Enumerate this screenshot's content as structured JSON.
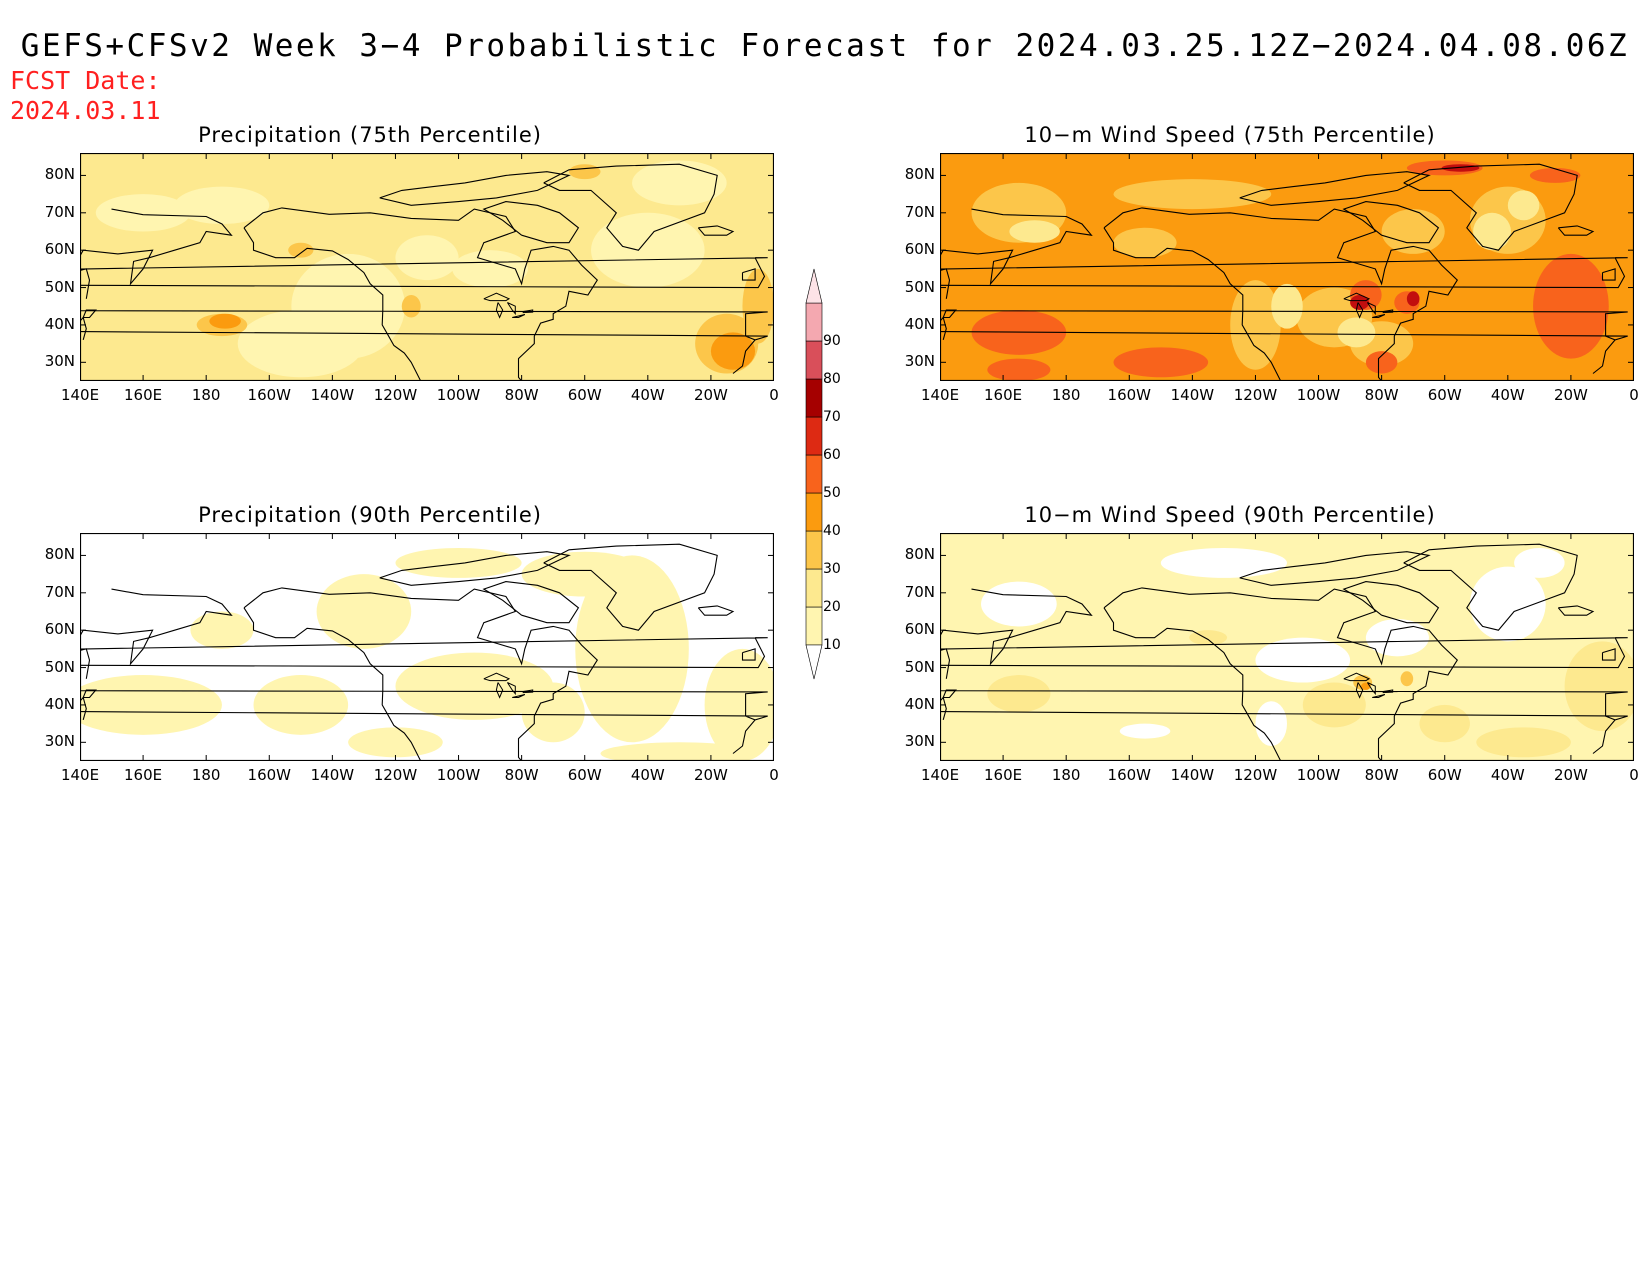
{
  "title": "GEFS+CFSv2 Week 3−4 Probabilistic Forecast for 2024.03.25.12Z−2024.04.08.06Z",
  "fcst_label": "FCST Date:",
  "fcst_date": "2024.03.11",
  "panels": [
    {
      "title": "Precipitation (75th Percentile)",
      "base": "#fde98f",
      "regions": [
        {
          "color": "#fff5b0",
          "e": [
            [
              -135,
              45,
              18,
              14
            ],
            [
              -150,
              35,
              20,
              9
            ],
            [
              -175,
              72,
              15,
              5
            ],
            [
              -40,
              60,
              18,
              10
            ],
            [
              -30,
              78,
              15,
              6
            ],
            [
              -110,
              58,
              10,
              6
            ],
            [
              -90,
              55,
              12,
              5
            ],
            [
              160,
              70,
              15,
              5
            ]
          ]
        },
        {
          "color": "#fcc64a",
          "e": [
            [
              -15,
              35,
              10,
              8
            ],
            [
              -5,
              45,
              5,
              10
            ],
            [
              -175,
              40,
              8,
              3
            ],
            [
              -115,
              45,
              3,
              3
            ],
            [
              -60,
              81,
              5,
              2
            ],
            [
              -150,
              60,
              4,
              2
            ]
          ]
        },
        {
          "color": "#fb9b0f",
          "e": [
            [
              -13,
              33,
              7,
              5
            ],
            [
              -174,
              41,
              5,
              2
            ]
          ]
        }
      ]
    },
    {
      "title": "10−m Wind Speed (75th Percentile)",
      "base": "#fb9b0f",
      "regions": [
        {
          "color": "#fcc64a",
          "e": [
            [
              -120,
              40,
              8,
              12
            ],
            [
              -95,
              42,
              12,
              8
            ],
            [
              165,
              70,
              15,
              8
            ],
            [
              -40,
              68,
              12,
              9
            ],
            [
              -140,
              75,
              25,
              4
            ],
            [
              -80,
              35,
              10,
              6
            ],
            [
              -70,
              65,
              10,
              6
            ],
            [
              -155,
              62,
              10,
              4
            ]
          ]
        },
        {
          "color": "#fde98f",
          "e": [
            [
              -110,
              45,
              5,
              6
            ],
            [
              -88,
              38,
              6,
              4
            ],
            [
              -45,
              65,
              6,
              5
            ],
            [
              170,
              65,
              8,
              3
            ],
            [
              -35,
              72,
              5,
              4
            ]
          ]
        },
        {
          "color": "#f8631c",
          "e": [
            [
              165,
              38,
              15,
              6
            ],
            [
              -20,
              45,
              12,
              14
            ],
            [
              -85,
              48,
              5,
              4
            ],
            [
              -72,
              46,
              4,
              3
            ],
            [
              -60,
              82,
              12,
              2
            ],
            [
              -25,
              80,
              8,
              2
            ],
            [
              165,
              28,
              10,
              3
            ],
            [
              -80,
              30,
              5,
              3
            ],
            [
              -150,
              30,
              15,
              4
            ]
          ]
        },
        {
          "color": "#c20e0e",
          "e": [
            [
              -87,
              46,
              3,
              2
            ],
            [
              -70,
              47,
              2,
              2
            ],
            [
              -55,
              82,
              6,
              1
            ]
          ]
        }
      ]
    },
    {
      "title": "Precipitation (90th Percentile)",
      "base": "#ffffff",
      "regions": [
        {
          "color": "#fff5b0",
          "e": [
            [
              -45,
              55,
              18,
              25
            ],
            [
              -10,
              40,
              12,
              15
            ],
            [
              -95,
              45,
              25,
              9
            ],
            [
              -130,
              65,
              15,
              10
            ],
            [
              160,
              40,
              25,
              8
            ],
            [
              -150,
              40,
              15,
              8
            ],
            [
              -120,
              30,
              15,
              4
            ],
            [
              -60,
              75,
              20,
              6
            ],
            [
              -100,
              78,
              20,
              4
            ],
            [
              -30,
              27,
              25,
              3
            ],
            [
              -175,
              60,
              10,
              5
            ],
            [
              -70,
              38,
              10,
              8
            ]
          ]
        }
      ]
    },
    {
      "title": "10−m Wind Speed (90th Percentile)",
      "base": "#fff5b0",
      "regions": [
        {
          "color": "#ffffff",
          "e": [
            [
              -40,
              67,
              12,
              10
            ],
            [
              -105,
              52,
              15,
              6
            ],
            [
              -130,
              78,
              20,
              4
            ],
            [
              165,
              67,
              12,
              6
            ],
            [
              -155,
              33,
              8,
              2
            ],
            [
              -115,
              35,
              5,
              6
            ],
            [
              -75,
              58,
              10,
              5
            ],
            [
              -30,
              78,
              8,
              4
            ]
          ]
        },
        {
          "color": "#fde98f",
          "e": [
            [
              -10,
              45,
              12,
              12
            ],
            [
              -35,
              30,
              15,
              4
            ],
            [
              -95,
              40,
              10,
              6
            ],
            [
              165,
              43,
              10,
              5
            ],
            [
              -60,
              35,
              8,
              5
            ],
            [
              -135,
              58,
              6,
              2
            ]
          ]
        },
        {
          "color": "#fcc64a",
          "e": [
            [
              -86,
              46,
              3,
              2
            ],
            [
              -72,
              47,
              2,
              2
            ]
          ]
        },
        {
          "color": "#fb9b0f",
          "e": [
            [
              -85,
              45,
              1.5,
              1
            ]
          ]
        }
      ]
    }
  ],
  "lat_labels": [
    "80N",
    "70N",
    "60N",
    "50N",
    "40N",
    "30N"
  ],
  "lon_labels": [
    "140E",
    "160E",
    "180",
    "160W",
    "140W",
    "120W",
    "100W",
    "80W",
    "60W",
    "40W",
    "20W",
    "0"
  ],
  "colorbar": {
    "levels": [
      "10",
      "20",
      "30",
      "40",
      "50",
      "60",
      "70",
      "80",
      "90"
    ],
    "colors": [
      "#fff5b0",
      "#fde98f",
      "#fcc64a",
      "#fb9b0f",
      "#f8631c",
      "#dd2a13",
      "#a50000",
      "#d94f5a",
      "#f4a8b0",
      "#fde3e7"
    ]
  }
}
